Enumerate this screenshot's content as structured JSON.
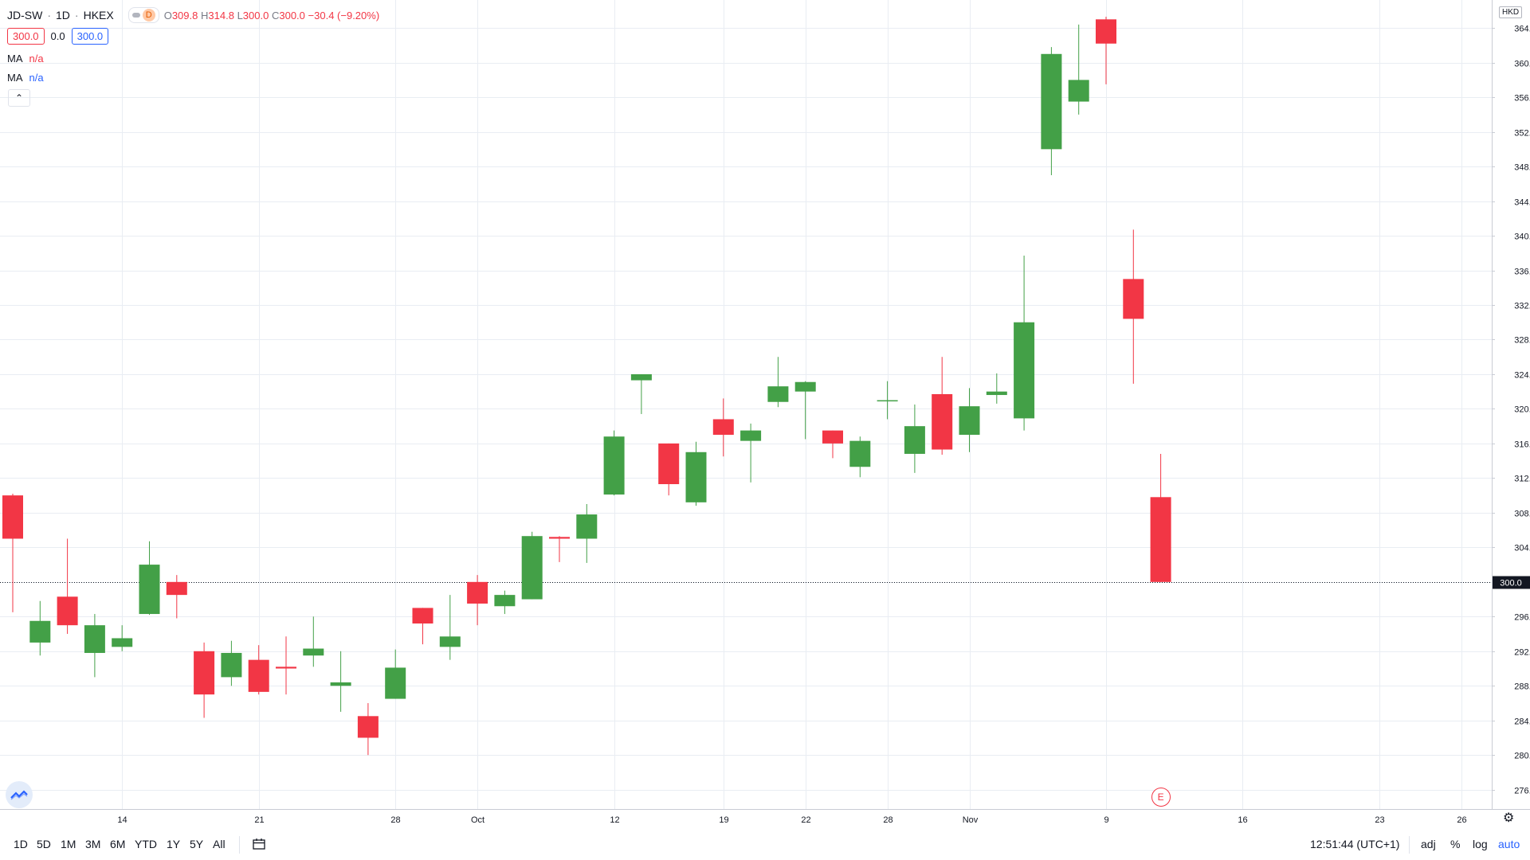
{
  "header": {
    "symbol": "JD-SW",
    "interval": "1D",
    "exchange": "HKEX",
    "badge": "D",
    "ohlc": {
      "o_label": "O",
      "o": "309.8",
      "h_label": "H",
      "h": "314.8",
      "l_label": "L",
      "l": "300.0",
      "c_label": "C",
      "c": "300.0",
      "change": "−30.4 (−9.20%)"
    },
    "bid": "300.0",
    "spread": "0.0",
    "ask": "300.0",
    "ma1": {
      "label": "MA",
      "value": "n/a"
    },
    "ma2": {
      "label": "MA",
      "value": "n/a"
    },
    "collapse_icon": "chevron-up"
  },
  "currency": "HKD",
  "earnings_marker": "E",
  "bottom": {
    "timeframes": [
      "1D",
      "5D",
      "1M",
      "3M",
      "6M",
      "YTD",
      "1Y",
      "5Y",
      "All"
    ],
    "clock": "12:51:44 (UTC+1)",
    "adj": "adj",
    "pct": "%",
    "log": "log",
    "auto": "auto"
  },
  "colors": {
    "up": "#43a047",
    "down": "#f23645",
    "grid": "#e9edf3",
    "accent": "#2962ff"
  },
  "chart_data": {
    "type": "candlestick",
    "symbol": "JD-SW",
    "ylim": [
      274.5,
      366.5
    ],
    "y_ticks": [
      276.0,
      280.0,
      284.0,
      288.0,
      292.0,
      296.0,
      300.0,
      304.0,
      308.0,
      312.0,
      316.0,
      320.0,
      324.0,
      328.0,
      332.0,
      336.0,
      340.0,
      344.0,
      348.0,
      352.0,
      356.0,
      360.0,
      364.0
    ],
    "x_ticks": [
      {
        "label": "14",
        "slot": 4.0
      },
      {
        "label": "21",
        "slot": 9.0
      },
      {
        "label": "28",
        "slot": 14.0
      },
      {
        "label": "Oct",
        "slot": 17.0
      },
      {
        "label": "12",
        "slot": 22.0
      },
      {
        "label": "19",
        "slot": 26.0
      },
      {
        "label": "22",
        "slot": 29.0
      },
      {
        "label": "28",
        "slot": 32.0
      },
      {
        "label": "Nov",
        "slot": 35.0
      },
      {
        "label": "9",
        "slot": 40.0
      },
      {
        "label": "16",
        "slot": 45.0
      },
      {
        "label": "23",
        "slot": 50.0
      },
      {
        "label": "26",
        "slot": 53.0
      }
    ],
    "last_price": 300.0,
    "last_price_label": "300.0",
    "earnings_slot": 42,
    "candles": [
      {
        "o": 310.0,
        "h": 310.2,
        "l": 296.5,
        "c": 305.0
      },
      {
        "o": 293.0,
        "h": 297.8,
        "l": 291.5,
        "c": 295.5
      },
      {
        "o": 298.3,
        "h": 305.0,
        "l": 294.0,
        "c": 295.0
      },
      {
        "o": 291.8,
        "h": 296.3,
        "l": 289.0,
        "c": 295.0
      },
      {
        "o": 292.5,
        "h": 295.0,
        "l": 292.0,
        "c": 293.5
      },
      {
        "o": 296.3,
        "h": 304.7,
        "l": 296.2,
        "c": 302.0
      },
      {
        "o": 300.0,
        "h": 300.8,
        "l": 295.8,
        "c": 298.5
      },
      {
        "o": 292.0,
        "h": 293.0,
        "l": 284.3,
        "c": 287.0
      },
      {
        "o": 289.0,
        "h": 293.2,
        "l": 288.0,
        "c": 291.8
      },
      {
        "o": 291.0,
        "h": 292.7,
        "l": 287.0,
        "c": 287.3
      },
      {
        "o": 290.2,
        "h": 293.7,
        "l": 287.0,
        "c": 290.0
      },
      {
        "o": 291.5,
        "h": 296.0,
        "l": 290.2,
        "c": 292.3
      },
      {
        "o": 288.0,
        "h": 292.0,
        "l": 285.0,
        "c": 288.4
      },
      {
        "o": 284.5,
        "h": 286.0,
        "l": 280.0,
        "c": 282.0
      },
      {
        "o": 286.5,
        "h": 292.2,
        "l": 286.5,
        "c": 290.1
      },
      {
        "o": 297.0,
        "h": 297.0,
        "l": 292.8,
        "c": 295.2
      },
      {
        "o": 292.5,
        "h": 298.5,
        "l": 291.0,
        "c": 293.7
      },
      {
        "o": 300.0,
        "h": 300.8,
        "l": 295.0,
        "c": 297.5
      },
      {
        "o": 297.2,
        "h": 299.0,
        "l": 296.3,
        "c": 298.5
      },
      {
        "o": 298.0,
        "h": 305.8,
        "l": 298.0,
        "c": 305.3
      },
      {
        "o": 305.2,
        "h": 305.3,
        "l": 302.3,
        "c": 305.0
      },
      {
        "o": 305.0,
        "h": 309.0,
        "l": 302.2,
        "c": 307.8
      },
      {
        "o": 310.1,
        "h": 317.5,
        "l": 310.0,
        "c": 316.8
      },
      {
        "o": 323.3,
        "h": 324.0,
        "l": 319.4,
        "c": 324.0
      },
      {
        "o": 316.0,
        "h": 316.0,
        "l": 310.0,
        "c": 311.3
      },
      {
        "o": 309.2,
        "h": 316.2,
        "l": 308.8,
        "c": 315.0
      },
      {
        "o": 318.8,
        "h": 321.2,
        "l": 314.5,
        "c": 317.0
      },
      {
        "o": 316.3,
        "h": 318.3,
        "l": 311.5,
        "c": 317.5
      },
      {
        "o": 320.8,
        "h": 326.0,
        "l": 320.2,
        "c": 322.6
      },
      {
        "o": 322.0,
        "h": 323.2,
        "l": 316.5,
        "c": 323.1
      },
      {
        "o": 317.5,
        "h": 317.5,
        "l": 314.3,
        "c": 316.0
      },
      {
        "o": 313.3,
        "h": 316.8,
        "l": 312.1,
        "c": 316.3
      },
      {
        "o": 321.0,
        "h": 323.2,
        "l": 318.8,
        "c": 321.0
      },
      {
        "o": 314.8,
        "h": 320.5,
        "l": 312.6,
        "c": 318.0
      },
      {
        "o": 321.7,
        "h": 326.0,
        "l": 314.7,
        "c": 315.3
      },
      {
        "o": 317.0,
        "h": 322.4,
        "l": 315.0,
        "c": 320.3
      },
      {
        "o": 321.6,
        "h": 324.1,
        "l": 320.6,
        "c": 322.0
      },
      {
        "o": 318.9,
        "h": 337.7,
        "l": 317.5,
        "c": 330.0
      },
      {
        "o": 350.0,
        "h": 361.8,
        "l": 347.0,
        "c": 361.0
      },
      {
        "o": 355.5,
        "h": 364.4,
        "l": 354.0,
        "c": 358.0
      },
      {
        "o": 365.0,
        "h": 365.3,
        "l": 357.5,
        "c": 362.2
      },
      {
        "o": 335.0,
        "h": 340.7,
        "l": 322.9,
        "c": 330.4
      },
      {
        "o": 309.8,
        "h": 314.8,
        "l": 300.0,
        "c": 300.0
      }
    ]
  }
}
